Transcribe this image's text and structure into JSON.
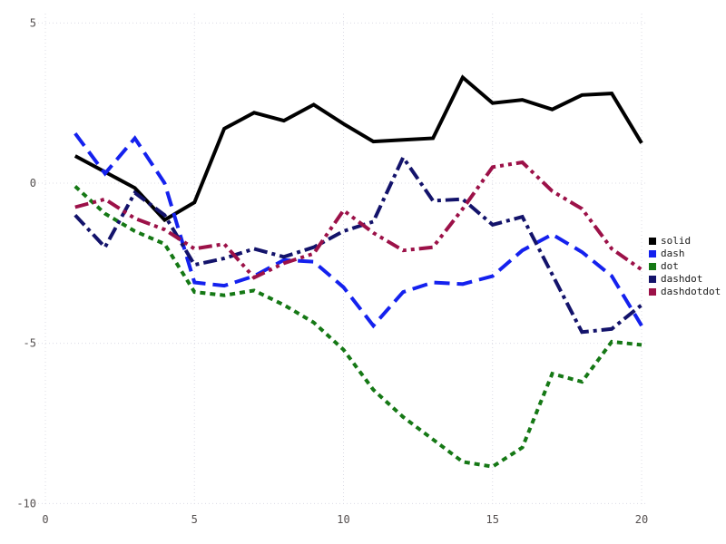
{
  "chart_data": {
    "type": "line",
    "title": "",
    "xlabel": "",
    "ylabel": "",
    "xlim": [
      0,
      20
    ],
    "ylim": [
      -10,
      5
    ],
    "grid": true,
    "xticks": [
      0,
      5,
      10,
      15,
      20
    ],
    "yticks": [
      5,
      0,
      -5,
      -10
    ],
    "x": [
      1,
      2,
      3,
      4,
      5,
      6,
      7,
      8,
      9,
      10,
      11,
      12,
      13,
      14,
      15,
      16,
      17,
      18,
      19,
      20
    ],
    "legend": {
      "position": "right",
      "entries": [
        "solid",
        "dash",
        "dot",
        "dashdot",
        "dashdotdot"
      ]
    },
    "series": [
      {
        "name": "solid",
        "color": "#000000",
        "linestyle": "solid",
        "values": [
          0.85,
          0.35,
          -0.15,
          -1.15,
          -0.6,
          1.7,
          2.2,
          1.95,
          2.45,
          1.85,
          1.3,
          1.35,
          1.4,
          3.3,
          2.5,
          2.6,
          2.3,
          2.75,
          2.8,
          1.25
        ]
      },
      {
        "name": "dash",
        "color": "#1421ee",
        "linestyle": "dash",
        "values": [
          1.55,
          0.3,
          1.4,
          0.0,
          -3.1,
          -3.2,
          -2.9,
          -2.4,
          -2.45,
          -3.25,
          -4.45,
          -3.4,
          -3.1,
          -3.15,
          -2.9,
          -2.1,
          -1.6,
          -2.15,
          -2.9,
          -4.45
        ]
      },
      {
        "name": "dot",
        "color": "#157815",
        "linestyle": "dot",
        "values": [
          -0.1,
          -0.95,
          -1.5,
          -1.9,
          -3.4,
          -3.5,
          -3.35,
          -3.8,
          -4.35,
          -5.2,
          -6.45,
          -7.3,
          -8.0,
          -8.7,
          -8.85,
          -8.25,
          -5.95,
          -6.2,
          -4.95,
          -5.05
        ]
      },
      {
        "name": "dashdot",
        "color": "#13136b",
        "linestyle": "dashdot",
        "values": [
          -1.0,
          -2.0,
          -0.3,
          -1.0,
          -2.55,
          -2.35,
          -2.05,
          -2.3,
          -2.0,
          -1.5,
          -1.2,
          0.8,
          -0.55,
          -0.5,
          -1.3,
          -1.05,
          -2.85,
          -4.65,
          -4.55,
          -3.8
        ]
      },
      {
        "name": "dashdotdot",
        "color": "#9c1148",
        "linestyle": "dashdotdot",
        "values": [
          -0.75,
          -0.5,
          -1.1,
          -1.45,
          -2.05,
          -1.9,
          -2.95,
          -2.5,
          -2.2,
          -0.85,
          -1.55,
          -2.1,
          -2.0,
          -0.8,
          0.5,
          0.65,
          -0.25,
          -0.8,
          -2.05,
          -2.7
        ]
      }
    ]
  }
}
